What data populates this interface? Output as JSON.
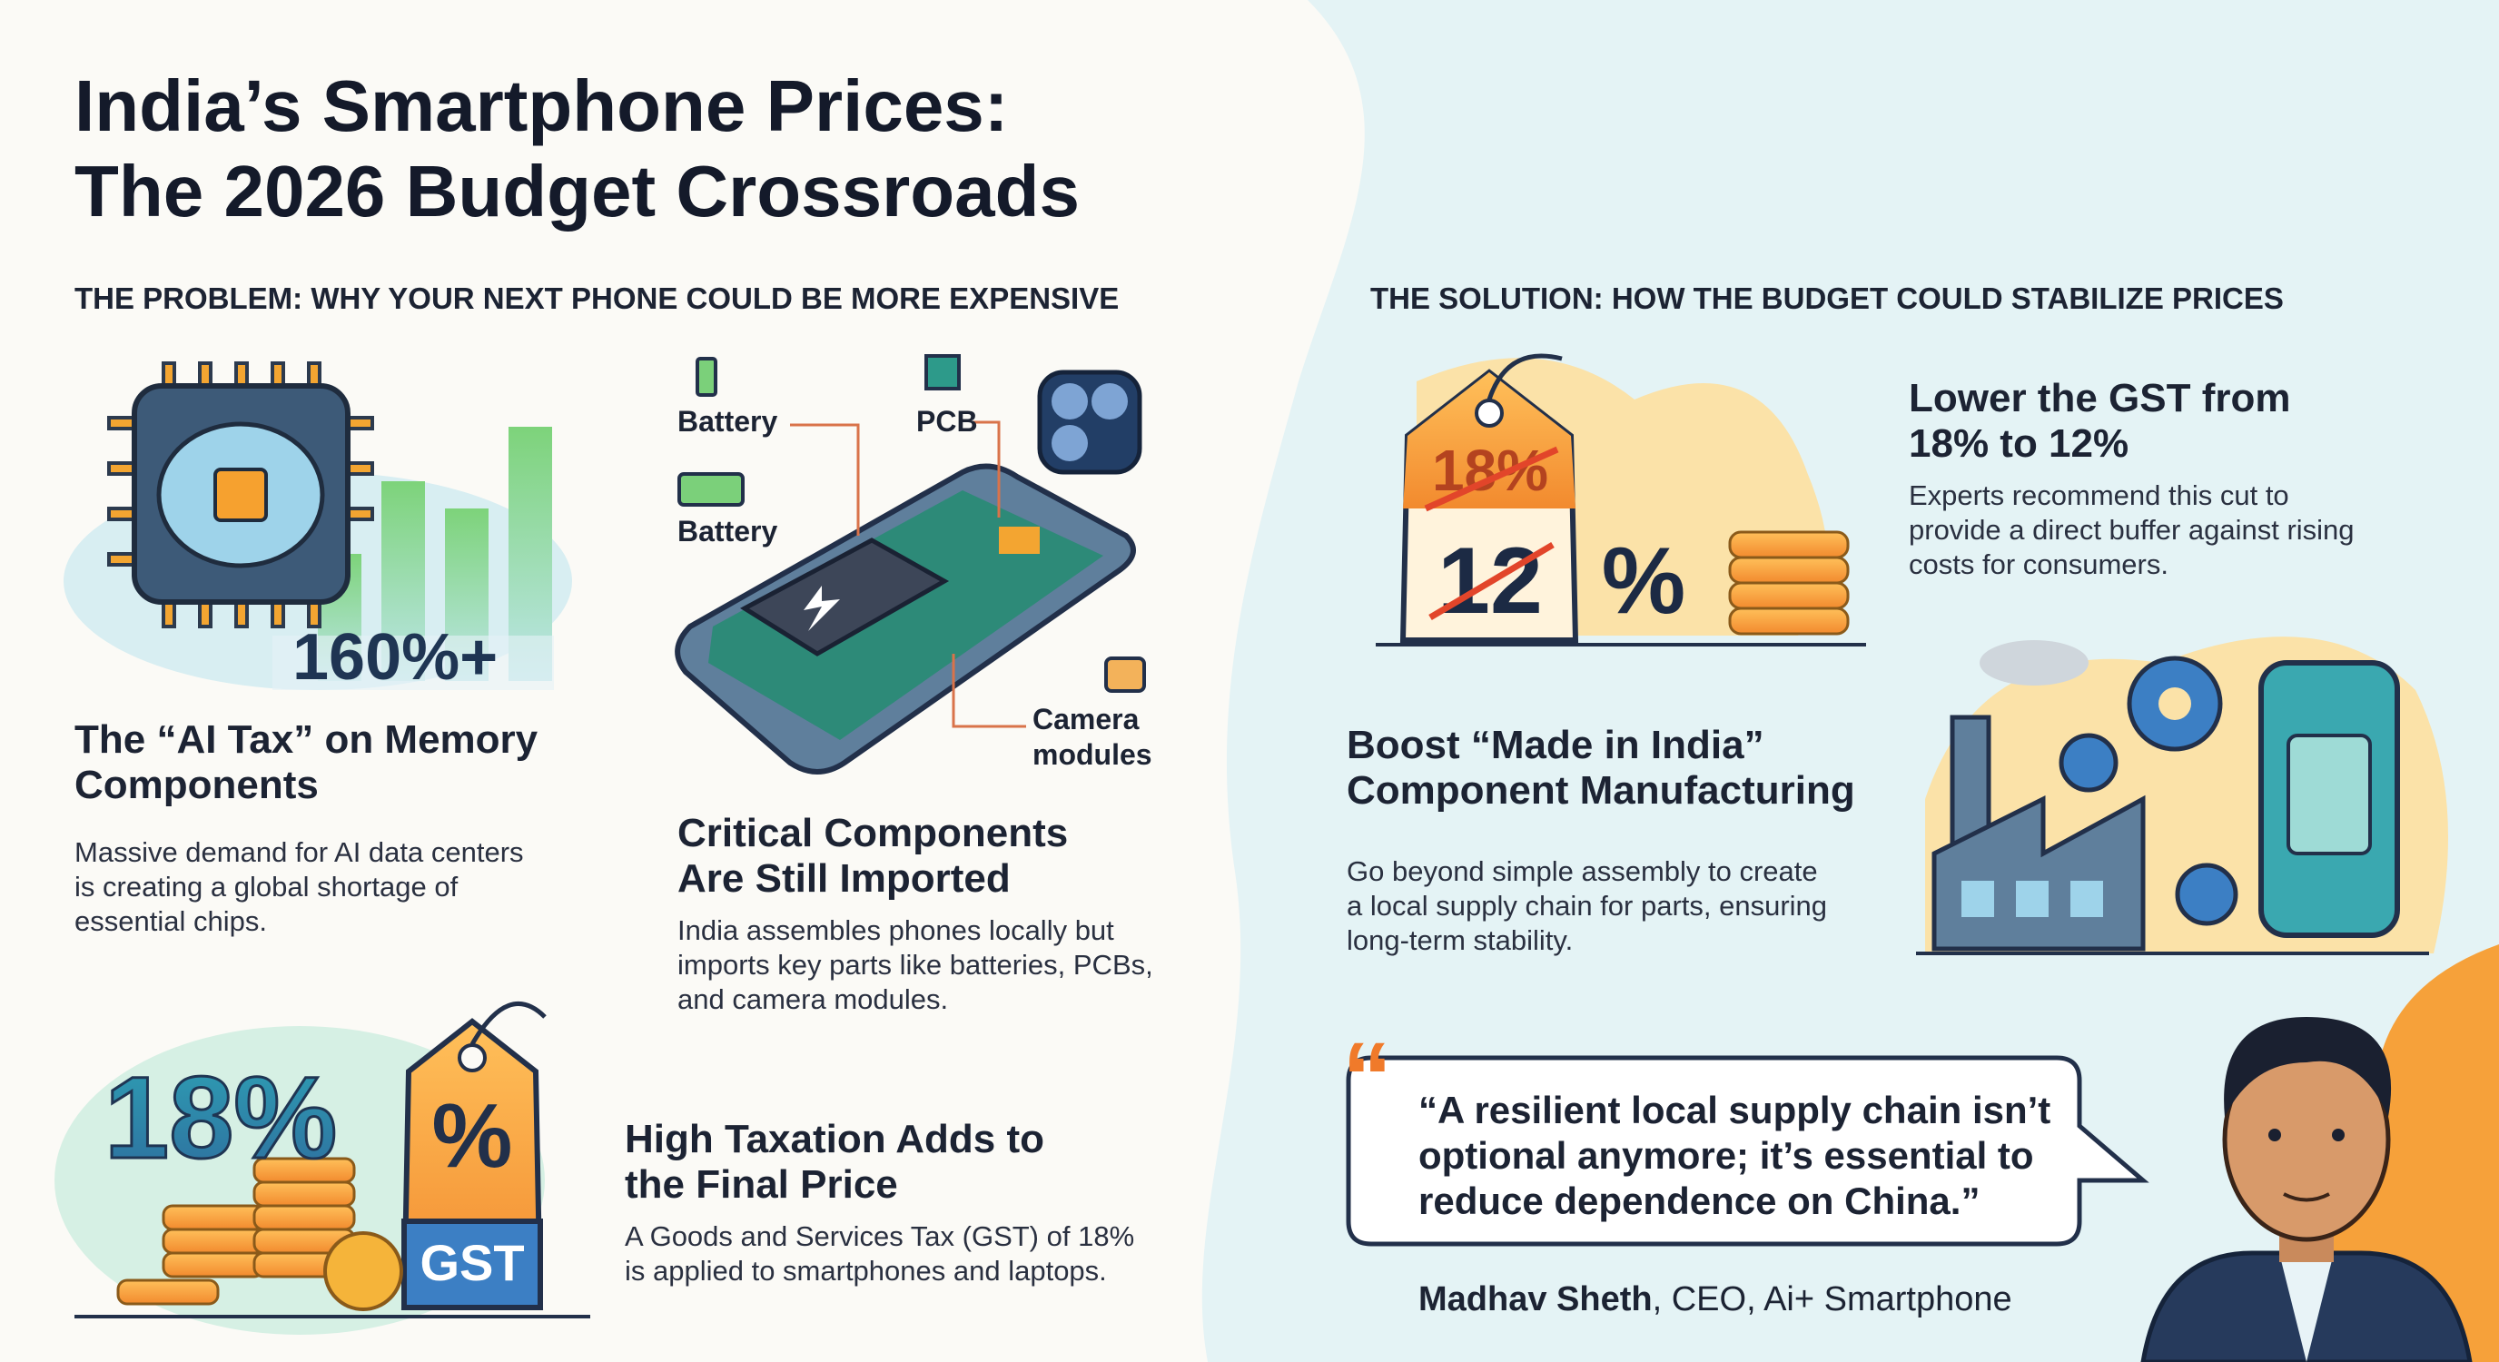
{
  "header": {
    "title_lines": [
      "India’s Smartphone Prices:",
      "The 2026 Budget Crossroads"
    ]
  },
  "problem": {
    "heading": "THE PROBLEM: WHY YOUR NEXT PHONE COULD BE MORE EXPENSIVE",
    "items": [
      {
        "illustration_labels": [
          "160%+"
        ],
        "title_lines": [
          "The “AI Tax” on Memory",
          "Components"
        ],
        "body_lines": [
          "Massive demand for AI data centers",
          "is creating a global shortage of",
          "essential chips."
        ]
      },
      {
        "illustration_labels": [
          "Battery",
          "PCB",
          "Battery",
          "Camera",
          "modules"
        ],
        "title_lines": [
          "Critical Components",
          "Are Still Imported"
        ],
        "body_lines": [
          "India assembles phones locally but",
          "imports key parts like batteries, PCBs,",
          "and camera modules."
        ]
      },
      {
        "illustration_labels": [
          "18%",
          "%",
          "GST"
        ],
        "title_lines": [
          "High Taxation Adds to",
          "the Final Price"
        ],
        "body_lines": [
          "A Goods and Services Tax (GST) of 18%",
          "is applied to smartphones and laptops."
        ]
      }
    ]
  },
  "solution": {
    "heading": "THE SOLUTION: HOW THE BUDGET COULD STABILIZE PRICES",
    "items": [
      {
        "illustration_labels": [
          "18%",
          "12",
          "%"
        ],
        "title_lines": [
          "Lower the GST from",
          "18% to 12%"
        ],
        "body_lines": [
          "Experts recommend this cut to",
          "provide a direct buffer against rising",
          "costs for consumers."
        ]
      },
      {
        "title_lines": [
          "Boost “Made in India”",
          "Component Manufacturing"
        ],
        "body_lines": [
          "Go beyond simple assembly to create",
          "a local supply chain for parts, ensuring",
          "long-term stability."
        ]
      }
    ],
    "quote": {
      "lines": [
        "“A resilient local supply chain isn’t",
        "optional anymore; it’s essential to",
        "reduce dependence on China.”"
      ],
      "name": "Madhav Sheth",
      "role": ", CEO, Ai+ Smartphone"
    }
  }
}
